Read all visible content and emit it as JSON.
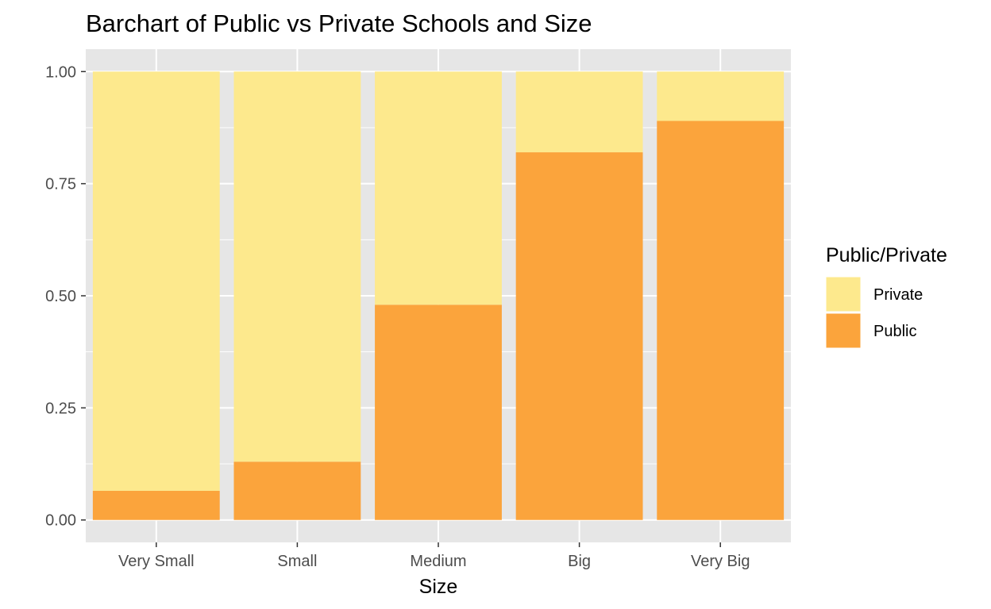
{
  "chart_data": {
    "type": "bar",
    "stacked": true,
    "title": "Barchart of Public vs Private Schools and Size",
    "xlabel": "Size",
    "ylabel": "",
    "categories": [
      "Very Small",
      "Small",
      "Medium",
      "Big",
      "Very Big"
    ],
    "series": [
      {
        "name": "Public",
        "color": "#FBA43C",
        "values": [
          0.065,
          0.13,
          0.48,
          0.82,
          0.89
        ]
      },
      {
        "name": "Private",
        "color": "#FDE98D",
        "values": [
          0.935,
          0.87,
          0.52,
          0.18,
          0.11
        ]
      }
    ],
    "ylim": [
      -0.05,
      1.05
    ],
    "yticks": [
      0,
      0.25,
      0.5,
      0.75,
      1
    ],
    "ytick_labels": [
      "0.00",
      "0.25",
      "0.50",
      "0.75",
      "1.00"
    ],
    "grid": true,
    "legend": {
      "title": "Public/Private",
      "placement": "right",
      "entries": [
        {
          "label": "Private",
          "color": "#FDE98D"
        },
        {
          "label": "Public",
          "color": "#FBA43C"
        }
      ]
    },
    "panel_color": "#E6E6E6",
    "grid_color": "#FFFFFF"
  }
}
